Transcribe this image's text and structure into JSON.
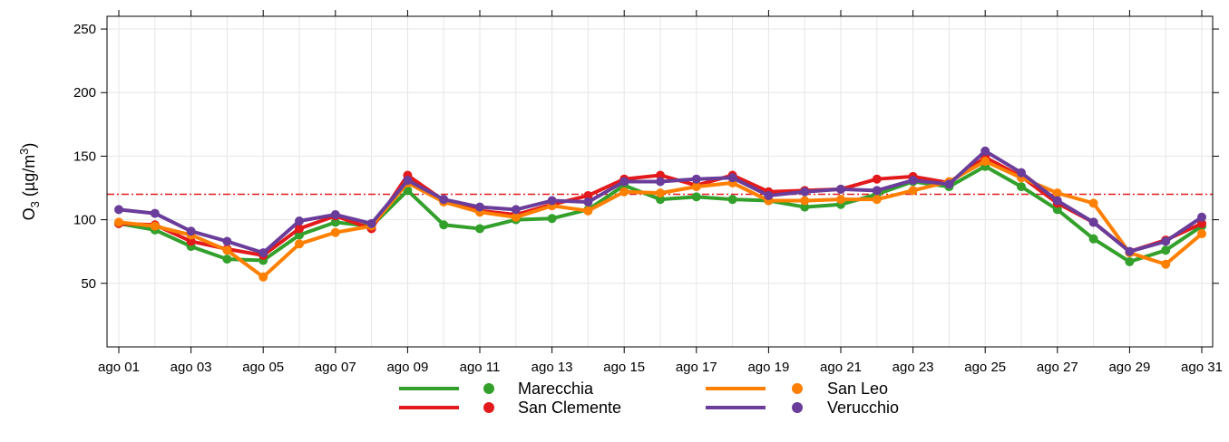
{
  "chart_data": {
    "type": "line",
    "ylabel_base": "O",
    "ylabel_sub": "3",
    "ylabel_unit_pre": " (µg/m",
    "ylabel_unit_sup": "3",
    "ylabel_unit_post": ")",
    "ylim": [
      0,
      260
    ],
    "yticks": [
      50,
      100,
      150,
      200,
      250
    ],
    "x": [
      "ago 01",
      "ago 02",
      "ago 03",
      "ago 04",
      "ago 05",
      "ago 06",
      "ago 07",
      "ago 08",
      "ago 09",
      "ago 10",
      "ago 11",
      "ago 12",
      "ago 13",
      "ago 14",
      "ago 15",
      "ago 16",
      "ago 17",
      "ago 18",
      "ago 19",
      "ago 20",
      "ago 21",
      "ago 22",
      "ago 23",
      "ago 24",
      "ago 25",
      "ago 26",
      "ago 27",
      "ago 28",
      "ago 29",
      "ago 30",
      "ago 31"
    ],
    "xtick_labels": [
      "ago 01",
      "ago 03",
      "ago 05",
      "ago 07",
      "ago 09",
      "ago 11",
      "ago 13",
      "ago 15",
      "ago 17",
      "ago 19",
      "ago 21",
      "ago 23",
      "ago 25",
      "ago 27",
      "ago 29",
      "ago 31"
    ],
    "threshold": {
      "value": 120,
      "color": "#e41a1c",
      "style": "dash-dot"
    },
    "grid": true,
    "legend_position": "bottom",
    "series": [
      {
        "name": "Marecchia",
        "color": "#33a02c",
        "values": [
          97,
          92,
          79,
          69,
          68,
          88,
          98,
          95,
          123,
          96,
          93,
          100,
          101,
          108,
          127,
          116,
          118,
          116,
          115,
          110,
          112,
          120,
          130,
          126,
          142,
          126,
          108,
          85,
          67,
          76,
          95
        ]
      },
      {
        "name": "San Clemente",
        "color": "#e31a1c",
        "values": [
          97,
          96,
          83,
          77,
          72,
          93,
          103,
          93,
          135,
          115,
          107,
          104,
          112,
          119,
          132,
          135,
          127,
          135,
          122,
          123,
          124,
          132,
          134,
          129,
          149,
          134,
          113,
          98,
          75,
          84,
          97
        ]
      },
      {
        "name": "San Leo",
        "color": "#ff7f00",
        "values": [
          98,
          95,
          88,
          76,
          55,
          81,
          90,
          95,
          129,
          114,
          106,
          102,
          111,
          107,
          122,
          121,
          126,
          129,
          115,
          115,
          116,
          116,
          123,
          130,
          146,
          133,
          121,
          113,
          74,
          65,
          89
        ]
      },
      {
        "name": "Verucchio",
        "color": "#6a3d9a",
        "values": [
          108,
          105,
          91,
          83,
          74,
          99,
          104,
          97,
          131,
          116,
          110,
          108,
          115,
          114,
          130,
          130,
          132,
          133,
          119,
          122,
          124,
          123,
          131,
          128,
          154,
          137,
          115,
          98,
          75,
          83,
          102
        ]
      }
    ]
  }
}
